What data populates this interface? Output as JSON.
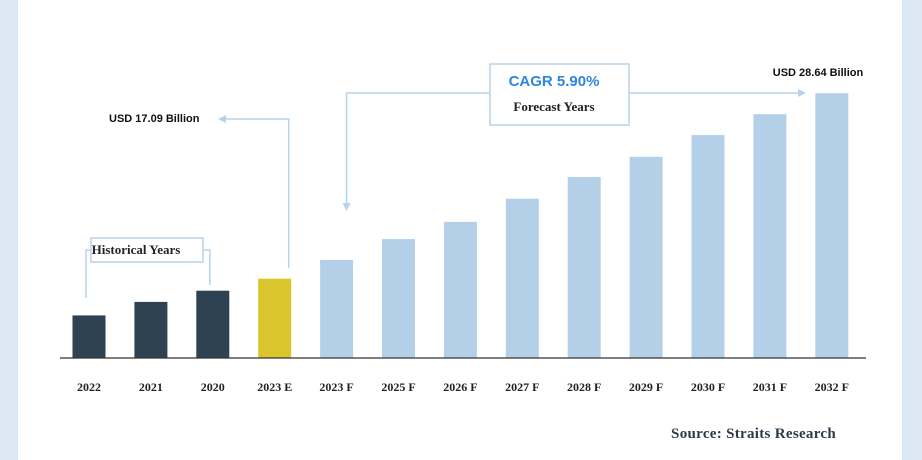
{
  "chart_data": {
    "type": "bar",
    "title": "",
    "xlabel": "",
    "ylabel": "",
    "categories": [
      "2022",
      "2021",
      "2020",
      "2023 E",
      "2023 F",
      "2025 F",
      "2026 F",
      "2027 F",
      "2028 F",
      "2029 F",
      "2030 F",
      "2031 F",
      "2032 F"
    ],
    "values": [
      5.7,
      7.5,
      9.0,
      10.6,
      13.1,
      15.9,
      18.2,
      21.3,
      24.2,
      26.9,
      29.8,
      32.6,
      35.4
    ],
    "groups": [
      "historical",
      "historical",
      "historical",
      "estimate",
      "forecast",
      "forecast",
      "forecast",
      "forecast",
      "forecast",
      "forecast",
      "forecast",
      "forecast",
      "forecast"
    ],
    "ylim": [
      0,
      36.5
    ],
    "grid": false,
    "colors": {
      "historical": "#2e4253",
      "estimate": "#d9c62c",
      "forecast": "#b3d0e8",
      "connector": "#b9d3ea",
      "box_border": "#b9d3ea"
    },
    "annotations": {
      "historical_label": "Historical Years",
      "start_value": "USD 17.09 Billion",
      "cagr": "CAGR 5.90%",
      "forecast_label": "Forecast Years",
      "end_value": "USD 28.64 Billion"
    },
    "source": "Source: Straits Research"
  }
}
